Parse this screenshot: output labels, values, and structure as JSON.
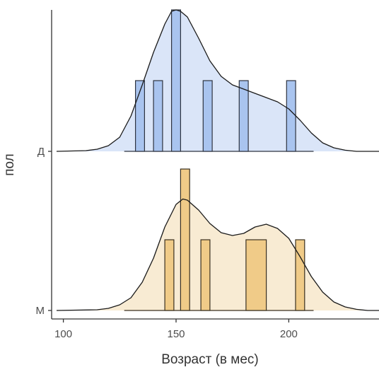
{
  "chart_data": {
    "type": "ridgeline",
    "title": "",
    "xlabel": "Возраст (в мес)",
    "ylabel": "пол",
    "xlim": [
      97,
      240
    ],
    "xticks": [
      100,
      150,
      200
    ],
    "grid": false,
    "legend": "none",
    "groups": [
      {
        "label": "Д",
        "fill": "#dae5f8",
        "bar_fill": "#a9c4ef",
        "line": "#1a1a1a",
        "bar_color": "#2e3440",
        "hist_range": [
          127,
          211
        ],
        "hist_bins": [
          {
            "x0": 132,
            "x1": 136,
            "h": 1.0
          },
          {
            "x0": 140,
            "x1": 144,
            "h": 1.0
          },
          {
            "x0": 148,
            "x1": 152,
            "h": 2.0
          },
          {
            "x0": 162,
            "x1": 166,
            "h": 1.0
          },
          {
            "x0": 178,
            "x1": 182,
            "h": 1.0
          },
          {
            "x0": 199,
            "x1": 203,
            "h": 1.0
          }
        ],
        "density": [
          [
            97,
            0.0
          ],
          [
            110,
            0.005
          ],
          [
            115,
            0.015
          ],
          [
            120,
            0.04
          ],
          [
            125,
            0.1
          ],
          [
            130,
            0.25
          ],
          [
            135,
            0.47
          ],
          [
            140,
            0.7
          ],
          [
            145,
            0.9
          ],
          [
            148,
            0.99
          ],
          [
            150,
            1.0
          ],
          [
            152,
            0.99
          ],
          [
            155,
            0.95
          ],
          [
            160,
            0.8
          ],
          [
            165,
            0.64
          ],
          [
            170,
            0.53
          ],
          [
            175,
            0.47
          ],
          [
            180,
            0.44
          ],
          [
            185,
            0.41
          ],
          [
            190,
            0.38
          ],
          [
            195,
            0.35
          ],
          [
            200,
            0.3
          ],
          [
            205,
            0.22
          ],
          [
            210,
            0.13
          ],
          [
            215,
            0.06
          ],
          [
            220,
            0.025
          ],
          [
            225,
            0.008
          ],
          [
            230,
            0.0
          ],
          [
            240,
            0.0
          ]
        ]
      },
      {
        "label": "М",
        "fill": "#f8ebd3",
        "bar_fill": "#f0cb88",
        "line": "#1a1a1a",
        "bar_color": "#3a3020",
        "hist_range": [
          127,
          211
        ],
        "hist_bins": [
          {
            "x0": 145,
            "x1": 149,
            "h": 1.0
          },
          {
            "x0": 152,
            "x1": 156,
            "h": 2.0
          },
          {
            "x0": 161,
            "x1": 165,
            "h": 1.0
          },
          {
            "x0": 181,
            "x1": 190,
            "h": 1.0
          },
          {
            "x0": 203,
            "x1": 207,
            "h": 1.0
          }
        ],
        "density": [
          [
            97,
            0.0
          ],
          [
            115,
            0.005
          ],
          [
            120,
            0.015
          ],
          [
            125,
            0.04
          ],
          [
            130,
            0.09
          ],
          [
            135,
            0.2
          ],
          [
            140,
            0.37
          ],
          [
            145,
            0.59
          ],
          [
            150,
            0.75
          ],
          [
            153,
            0.788
          ],
          [
            155,
            0.78
          ],
          [
            160,
            0.71
          ],
          [
            165,
            0.615
          ],
          [
            170,
            0.55
          ],
          [
            175,
            0.53
          ],
          [
            180,
            0.545
          ],
          [
            185,
            0.59
          ],
          [
            190,
            0.61
          ],
          [
            195,
            0.58
          ],
          [
            200,
            0.51
          ],
          [
            205,
            0.38
          ],
          [
            210,
            0.24
          ],
          [
            215,
            0.13
          ],
          [
            220,
            0.06
          ],
          [
            225,
            0.025
          ],
          [
            230,
            0.008
          ],
          [
            235,
            0.0
          ],
          [
            240,
            0.0
          ]
        ]
      }
    ]
  }
}
